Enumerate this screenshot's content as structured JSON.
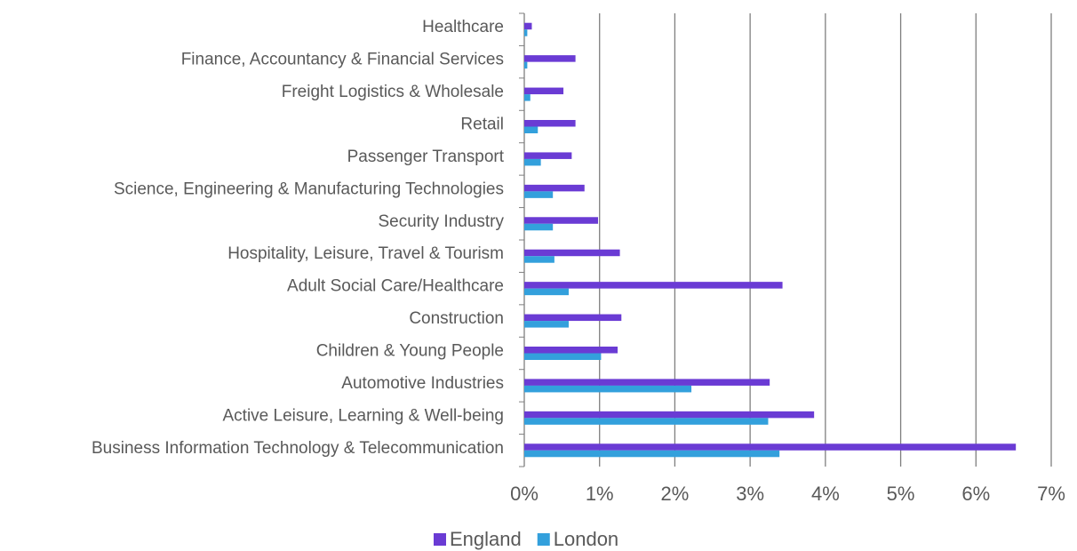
{
  "chart_data": {
    "type": "barh",
    "categories": [
      "Healthcare",
      "Finance, Accountancy & Financial Services",
      "Freight Logistics & Wholesale",
      "Retail",
      "Passenger Transport",
      "Science, Engineering & Manufacturing Technologies",
      "Security Industry",
      "Hospitality, Leisure, Travel & Tourism",
      "Adult Social Care/Healthcare",
      "Construction",
      "Children & Young People",
      "Automotive Industries",
      "Active Leisure, Learning & Well-being",
      "Business Information Technology & Telecommunication"
    ],
    "series": [
      {
        "name": "England",
        "color": "#6a3bd4",
        "values": [
          0.1,
          0.68,
          0.52,
          0.68,
          0.63,
          0.8,
          0.98,
          1.27,
          3.43,
          1.29,
          1.24,
          3.26,
          3.85,
          6.53
        ]
      },
      {
        "name": "London",
        "color": "#33a0dc",
        "values": [
          0.04,
          0.04,
          0.08,
          0.18,
          0.22,
          0.38,
          0.38,
          0.4,
          0.59,
          0.59,
          1.02,
          2.22,
          3.24,
          3.39
        ]
      }
    ],
    "xlim": [
      0,
      7
    ],
    "xticks": [
      {
        "value": 0,
        "label": "0%"
      },
      {
        "value": 1,
        "label": "1%"
      },
      {
        "value": 2,
        "label": "2%"
      },
      {
        "value": 3,
        "label": "3%"
      },
      {
        "value": 4,
        "label": "4%"
      },
      {
        "value": 5,
        "label": "5%"
      },
      {
        "value": 6,
        "label": "6%"
      },
      {
        "value": 7,
        "label": "7%"
      }
    ],
    "grid": true,
    "legend": "bottom"
  }
}
